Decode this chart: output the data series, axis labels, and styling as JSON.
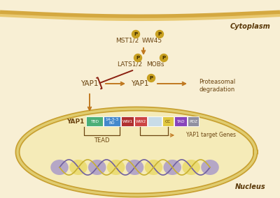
{
  "bg_color": "#f8efd4",
  "membrane_outer_color": "#d4a840",
  "membrane_inner_color": "#e8c870",
  "nucleus_fill": "#f5ebb8",
  "nucleus_border": "#c8a030",
  "nucleus_inner_line": "#e0cc70",
  "arrow_color": "#c07820",
  "inhibit_color": "#8b2010",
  "text_color": "#6b4410",
  "text_bold_color": "#5a3808",
  "p_fill": "#c8a020",
  "p_text": "#3a2800",
  "cytoplasm_label": "Cytoplasm",
  "nucleus_label": "Nucleus",
  "mst_label": "MST1/2",
  "ww45_label": "WW45",
  "lats_label": "LATS1/2",
  "mobs_label": "MOBs",
  "yap1_label": "YAP1",
  "prot_label1": "Proteasomal",
  "prot_label2": "degradation",
  "tead_label": "TEAD",
  "target_label": "YAP1 target Genes",
  "dom_labels": [
    "TBD",
    "14-3-3\nBD",
    "WW1",
    "WW2",
    "",
    "CC",
    "TAD",
    "PDZ"
  ],
  "dom_colors": [
    "#4caf78",
    "#4488cc",
    "#b03030",
    "#cc4444",
    "#c8dce8",
    "#e0c840",
    "#8844bb",
    "#9090a0"
  ],
  "dom_tcolors": [
    "#ffffff",
    "#ffffff",
    "#ffffff",
    "#ffffff",
    "#888888",
    "#5a3808",
    "#ffffff",
    "#ffffff"
  ],
  "dom_widths": [
    24,
    24,
    18,
    18,
    20,
    16,
    18,
    16
  ]
}
